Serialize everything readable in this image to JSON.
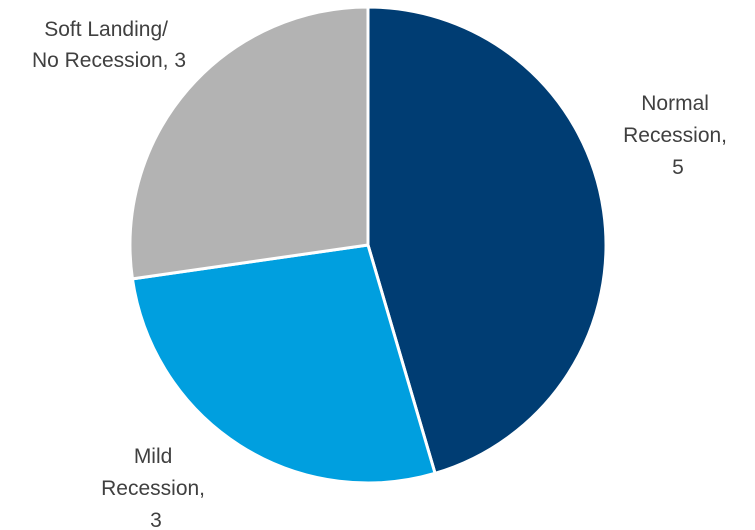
{
  "chart_data": {
    "type": "pie",
    "title": "",
    "slices": [
      {
        "label_lines": [
          "Normal",
          "Recession,",
          "5"
        ],
        "value": 5,
        "color": "#003d73"
      },
      {
        "label_lines": [
          "Mild",
          "Recession,",
          "3"
        ],
        "value": 3,
        "color": "#009fdf"
      },
      {
        "label_lines": [
          "Soft Landing/",
          "No Recession, 3"
        ],
        "value": 3,
        "color": "#b3b3b3"
      }
    ],
    "start_angle_deg": 0,
    "direction": "clockwise",
    "legend": "none",
    "slice_border_color": "#ffffff"
  }
}
